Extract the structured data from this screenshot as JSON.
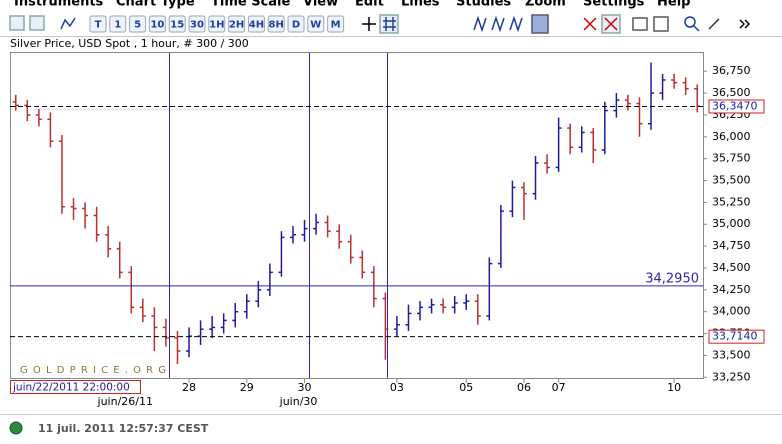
{
  "menu": [
    "Instruments",
    "Chart Type",
    "Time Scale",
    "View",
    "Edit",
    "Lines",
    "Studies",
    "Zoom",
    "Settings",
    "Help"
  ],
  "toolbar": {
    "buttons": [
      "T",
      "1",
      "5",
      "10",
      "15",
      "30",
      "1H",
      "2H",
      "4H",
      "8H",
      "D",
      "W",
      "M"
    ]
  },
  "chart_data": {
    "type": "ohlc",
    "title": "Silver Price, USD Spot , 1 hour, # 300 / 300",
    "watermark": "G O L D P R I C E . O R G",
    "cursor_label": "juin/22/2011 22:00:00",
    "categories": [
      null,
      null,
      null,
      null,
      null,
      null,
      null,
      null,
      null,
      null,
      null,
      null,
      null,
      null,
      null,
      "28",
      null,
      null,
      null,
      null,
      "29",
      null,
      null,
      null,
      null,
      "30",
      null,
      null,
      null,
      null,
      null,
      null,
      null,
      "03",
      null,
      null,
      null,
      null,
      null,
      "05",
      null,
      null,
      null,
      null,
      "06",
      null,
      null,
      "07",
      null,
      null,
      null,
      null,
      null,
      null,
      null,
      null,
      null,
      "10",
      null,
      null
    ],
    "categories_secondary": [
      null,
      null,
      null,
      null,
      null,
      null,
      null,
      null,
      null,
      null,
      "juin/26/11",
      null,
      null,
      null,
      null,
      null,
      null,
      null,
      null,
      null,
      null,
      null,
      null,
      null,
      null,
      "juin/30",
      null,
      null,
      null,
      null,
      null,
      null,
      null,
      null,
      null,
      null,
      null,
      null,
      null,
      null,
      null,
      null,
      null,
      null,
      null,
      null,
      null,
      null,
      null,
      null,
      null,
      null,
      null,
      null,
      null,
      null,
      null,
      null,
      null,
      null
    ],
    "open": [
      36.4,
      36.36,
      36.25,
      36.2,
      35.95,
      35.2,
      35.18,
      35.1,
      34.88,
      34.72,
      34.45,
      34.05,
      33.95,
      33.82,
      33.7,
      33.55,
      33.72,
      33.8,
      33.82,
      33.9,
      34.0,
      34.12,
      34.25,
      34.45,
      34.85,
      34.88,
      34.95,
      35.02,
      34.92,
      34.8,
      34.62,
      34.45,
      34.15,
      33.8,
      33.85,
      33.98,
      34.05,
      34.08,
      34.05,
      34.1,
      34.12,
      33.95,
      34.55,
      35.15,
      35.42,
      35.35,
      35.7,
      35.65,
      36.1,
      35.88,
      36.05,
      35.85,
      36.3,
      36.42,
      36.38,
      36.15,
      36.5,
      36.65,
      36.62,
      36.55
    ],
    "high": [
      36.48,
      36.42,
      36.32,
      36.28,
      36.02,
      35.3,
      35.25,
      35.2,
      34.98,
      34.8,
      34.52,
      34.15,
      34.05,
      33.92,
      33.78,
      33.82,
      33.9,
      33.95,
      33.98,
      34.1,
      34.2,
      34.35,
      34.55,
      34.92,
      34.98,
      35.05,
      35.12,
      35.1,
      35.0,
      34.88,
      34.7,
      34.52,
      34.22,
      33.95,
      34.08,
      34.12,
      34.15,
      34.15,
      34.18,
      34.2,
      34.2,
      34.62,
      35.22,
      35.5,
      35.48,
      35.78,
      35.8,
      36.22,
      36.15,
      36.12,
      36.1,
      36.4,
      36.5,
      36.48,
      36.45,
      36.85,
      36.72,
      36.72,
      36.68,
      36.6
    ],
    "low": [
      36.3,
      36.18,
      36.12,
      35.88,
      35.12,
      35.05,
      34.95,
      34.8,
      34.62,
      34.38,
      33.98,
      33.88,
      33.55,
      33.6,
      33.4,
      33.48,
      33.62,
      33.7,
      33.75,
      33.82,
      33.92,
      34.05,
      34.18,
      34.4,
      34.78,
      34.8,
      34.88,
      34.85,
      34.72,
      34.55,
      34.38,
      34.05,
      33.45,
      33.72,
      33.78,
      33.9,
      33.98,
      33.98,
      33.98,
      34.02,
      33.85,
      33.9,
      34.5,
      35.08,
      35.05,
      35.28,
      35.58,
      35.6,
      35.8,
      35.82,
      35.7,
      35.8,
      36.22,
      36.3,
      36.0,
      36.08,
      36.42,
      36.55,
      36.48,
      36.28
    ],
    "close": [
      36.36,
      36.25,
      36.2,
      35.95,
      35.2,
      35.18,
      35.1,
      34.88,
      34.72,
      34.45,
      34.05,
      33.95,
      33.82,
      33.7,
      33.55,
      33.72,
      33.8,
      33.82,
      33.9,
      34.0,
      34.12,
      34.25,
      34.45,
      34.85,
      34.88,
      34.95,
      35.02,
      34.92,
      34.8,
      34.62,
      34.45,
      34.15,
      33.8,
      33.85,
      33.98,
      34.05,
      34.08,
      34.05,
      34.1,
      34.12,
      33.95,
      34.55,
      35.15,
      35.42,
      35.35,
      35.7,
      35.65,
      36.1,
      35.88,
      36.05,
      35.85,
      36.3,
      36.42,
      36.38,
      36.15,
      36.5,
      36.65,
      36.62,
      36.55,
      36.35
    ],
    "up_color": "#1c1c9c",
    "down_color": "#b83030",
    "ylim": [
      33.23,
      36.97
    ],
    "yticks": [
      {
        "value": 33.25,
        "label": "33,250"
      },
      {
        "value": 33.5,
        "label": "33,500"
      },
      {
        "value": 33.75,
        "label": "33,750"
      },
      {
        "value": 34,
        "label": "34,000"
      },
      {
        "value": 34.25,
        "label": "34,250"
      },
      {
        "value": 34.5,
        "label": "34,500"
      },
      {
        "value": 34.75,
        "label": "34,750"
      },
      {
        "value": 35,
        "label": "35,000"
      },
      {
        "value": 35.25,
        "label": "35,250"
      },
      {
        "value": 35.5,
        "label": "35,500"
      },
      {
        "value": 35.75,
        "label": "35,750"
      },
      {
        "value": 36,
        "label": "36,000"
      },
      {
        "value": 36.25,
        "label": "36,250"
      },
      {
        "value": 36.5,
        "label": "36,500"
      },
      {
        "value": 36.75,
        "label": "36,750"
      }
    ],
    "reference_lines": [
      {
        "value": 36.347,
        "label": "36,3470",
        "style": "dashed",
        "color": "#000000",
        "boxed": true
      },
      {
        "value": 34.295,
        "label": "34,2950",
        "style": "solid",
        "color": "#2828b0",
        "boxed": false
      },
      {
        "value": 33.714,
        "label": "33,7140",
        "style": "dashed",
        "color": "#000000",
        "boxed": true
      }
    ]
  },
  "status": "11 juil. 2011 12:57:37 CEST"
}
